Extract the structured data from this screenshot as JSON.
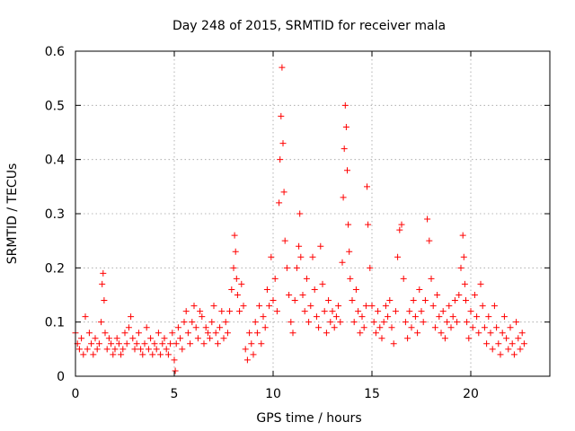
{
  "chart_data": {
    "type": "scatter",
    "title": "Day 248 of 2015, SRMTID for receiver mala",
    "xlabel": "GPS time / hours",
    "ylabel": "SRMTID / TECUs",
    "xlim": [
      0,
      24
    ],
    "ylim": [
      0,
      0.6
    ],
    "xticks": [
      0,
      5,
      10,
      15,
      20
    ],
    "yticks": [
      0,
      0.1,
      0.2,
      0.3,
      0.4,
      0.5,
      0.6
    ],
    "xtick_labels": [
      "0",
      "5",
      "10",
      "15",
      "20"
    ],
    "ytick_labels": [
      "0",
      "0.1",
      "0.2",
      "0.3",
      "0.4",
      "0.5",
      "0.6"
    ],
    "grid": true,
    "marker": "+",
    "series": [
      {
        "name": "SRMTID",
        "color": "#ff0000",
        "x": [
          0.0,
          0.1,
          0.2,
          0.3,
          0.4,
          0.5,
          0.6,
          0.7,
          0.8,
          0.9,
          1.0,
          1.1,
          1.2,
          1.3,
          1.35,
          1.4,
          1.45,
          1.5,
          1.6,
          1.7,
          1.8,
          1.9,
          2.0,
          2.1,
          2.2,
          2.3,
          2.4,
          2.5,
          2.6,
          2.7,
          2.8,
          2.9,
          3.0,
          3.1,
          3.2,
          3.3,
          3.4,
          3.5,
          3.6,
          3.7,
          3.8,
          3.9,
          4.0,
          4.1,
          4.2,
          4.3,
          4.4,
          4.5,
          4.6,
          4.7,
          4.8,
          4.9,
          5.0,
          5.05,
          5.1,
          5.2,
          5.3,
          5.4,
          5.5,
          5.6,
          5.7,
          5.8,
          5.9,
          6.0,
          6.1,
          6.2,
          6.3,
          6.4,
          6.5,
          6.6,
          6.7,
          6.8,
          6.9,
          7.0,
          7.1,
          7.2,
          7.3,
          7.4,
          7.5,
          7.6,
          7.7,
          7.8,
          7.9,
          8.0,
          8.05,
          8.1,
          8.15,
          8.2,
          8.3,
          8.4,
          8.5,
          8.6,
          8.7,
          8.8,
          8.9,
          9.0,
          9.1,
          9.2,
          9.3,
          9.4,
          9.5,
          9.6,
          9.7,
          9.8,
          9.9,
          10.0,
          10.1,
          10.2,
          10.3,
          10.35,
          10.4,
          10.45,
          10.5,
          10.55,
          10.6,
          10.7,
          10.8,
          10.9,
          11.0,
          11.1,
          11.2,
          11.3,
          11.35,
          11.4,
          11.5,
          11.6,
          11.7,
          11.8,
          11.9,
          12.0,
          12.1,
          12.2,
          12.3,
          12.4,
          12.5,
          12.6,
          12.7,
          12.8,
          12.9,
          13.0,
          13.1,
          13.2,
          13.3,
          13.4,
          13.5,
          13.55,
          13.6,
          13.65,
          13.7,
          13.75,
          13.8,
          13.85,
          13.9,
          14.0,
          14.1,
          14.2,
          14.3,
          14.4,
          14.5,
          14.6,
          14.7,
          14.75,
          14.8,
          14.9,
          15.0,
          15.1,
          15.2,
          15.3,
          15.4,
          15.5,
          15.6,
          15.7,
          15.8,
          15.9,
          16.0,
          16.1,
          16.2,
          16.3,
          16.4,
          16.5,
          16.6,
          16.7,
          16.8,
          16.9,
          17.0,
          17.1,
          17.2,
          17.3,
          17.4,
          17.5,
          17.6,
          17.7,
          17.8,
          17.9,
          18.0,
          18.1,
          18.2,
          18.3,
          18.4,
          18.5,
          18.6,
          18.7,
          18.8,
          18.9,
          19.0,
          19.1,
          19.2,
          19.3,
          19.4,
          19.5,
          19.6,
          19.65,
          19.7,
          19.75,
          19.8,
          19.9,
          20.0,
          20.1,
          20.2,
          20.3,
          20.4,
          20.5,
          20.6,
          20.7,
          20.8,
          20.9,
          21.0,
          21.1,
          21.2,
          21.3,
          21.4,
          21.5,
          21.6,
          21.7,
          21.8,
          21.9,
          22.0,
          22.1,
          22.2,
          22.3,
          22.4,
          22.5,
          22.6,
          22.7
        ],
        "values": [
          0.08,
          0.06,
          0.05,
          0.07,
          0.04,
          0.11,
          0.05,
          0.08,
          0.06,
          0.04,
          0.07,
          0.05,
          0.06,
          0.1,
          0.17,
          0.19,
          0.14,
          0.08,
          0.05,
          0.07,
          0.06,
          0.04,
          0.05,
          0.07,
          0.06,
          0.04,
          0.05,
          0.08,
          0.06,
          0.09,
          0.11,
          0.07,
          0.05,
          0.06,
          0.08,
          0.05,
          0.04,
          0.06,
          0.09,
          0.05,
          0.07,
          0.04,
          0.06,
          0.05,
          0.08,
          0.04,
          0.06,
          0.07,
          0.05,
          0.04,
          0.06,
          0.08,
          0.03,
          0.01,
          0.06,
          0.09,
          0.07,
          0.05,
          0.1,
          0.12,
          0.08,
          0.06,
          0.1,
          0.13,
          0.09,
          0.07,
          0.12,
          0.11,
          0.06,
          0.09,
          0.08,
          0.07,
          0.1,
          0.13,
          0.08,
          0.06,
          0.09,
          0.12,
          0.07,
          0.1,
          0.08,
          0.12,
          0.16,
          0.2,
          0.26,
          0.23,
          0.18,
          0.15,
          0.12,
          0.17,
          0.13,
          0.05,
          0.03,
          0.08,
          0.06,
          0.04,
          0.1,
          0.08,
          0.13,
          0.06,
          0.11,
          0.09,
          0.16,
          0.13,
          0.22,
          0.14,
          0.18,
          0.12,
          0.32,
          0.4,
          0.48,
          0.57,
          0.43,
          0.34,
          0.25,
          0.2,
          0.15,
          0.1,
          0.08,
          0.14,
          0.2,
          0.24,
          0.3,
          0.22,
          0.15,
          0.12,
          0.18,
          0.1,
          0.13,
          0.22,
          0.16,
          0.11,
          0.09,
          0.24,
          0.17,
          0.12,
          0.08,
          0.14,
          0.1,
          0.12,
          0.09,
          0.11,
          0.13,
          0.1,
          0.21,
          0.33,
          0.42,
          0.5,
          0.46,
          0.38,
          0.28,
          0.23,
          0.18,
          0.14,
          0.1,
          0.16,
          0.12,
          0.08,
          0.11,
          0.09,
          0.13,
          0.35,
          0.28,
          0.2,
          0.13,
          0.1,
          0.08,
          0.12,
          0.09,
          0.07,
          0.1,
          0.13,
          0.11,
          0.14,
          0.09,
          0.06,
          0.12,
          0.22,
          0.27,
          0.28,
          0.18,
          0.1,
          0.07,
          0.12,
          0.09,
          0.14,
          0.11,
          0.08,
          0.16,
          0.12,
          0.1,
          0.14,
          0.29,
          0.25,
          0.18,
          0.13,
          0.09,
          0.15,
          0.11,
          0.08,
          0.12,
          0.07,
          0.1,
          0.13,
          0.09,
          0.11,
          0.14,
          0.1,
          0.15,
          0.2,
          0.26,
          0.22,
          0.17,
          0.14,
          0.1,
          0.07,
          0.12,
          0.09,
          0.15,
          0.11,
          0.08,
          0.17,
          0.13,
          0.09,
          0.06,
          0.11,
          0.08,
          0.05,
          0.13,
          0.09,
          0.06,
          0.04,
          0.08,
          0.11,
          0.07,
          0.05,
          0.09,
          0.06,
          0.04,
          0.1,
          0.07,
          0.05,
          0.08,
          0.06
        ]
      }
    ]
  }
}
